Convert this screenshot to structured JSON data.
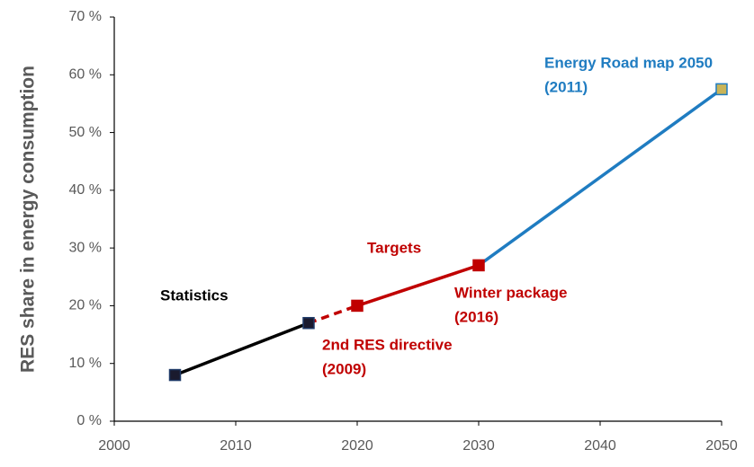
{
  "chart_data": {
    "type": "line",
    "y_label": "RES share in energy consumption",
    "xlim": [
      2000,
      2050
    ],
    "xticks": [
      2000,
      2010,
      2020,
      2030,
      2040,
      2050
    ],
    "ylim": [
      0,
      70
    ],
    "yticks": [
      {
        "value": 0,
        "label": "0 %"
      },
      {
        "value": 10,
        "label": "10 %"
      },
      {
        "value": 20,
        "label": "20 %"
      },
      {
        "value": 30,
        "label": "30 %"
      },
      {
        "value": 40,
        "label": "40 %"
      },
      {
        "value": 50,
        "label": "50 %"
      },
      {
        "value": 60,
        "label": "60 %"
      },
      {
        "value": 70,
        "label": "70 %"
      }
    ],
    "series": [
      {
        "name": "Statistics",
        "color": "#000000",
        "marker_color": "#1a1a2e",
        "x": [
          2005,
          2016
        ],
        "values": [
          8,
          17
        ],
        "markers": [
          true,
          true
        ],
        "dashed": false
      },
      {
        "color": "#c00000",
        "x": [
          2016,
          2020
        ],
        "values": [
          17,
          20
        ],
        "markers": [
          false,
          false
        ],
        "dashed": true
      },
      {
        "name": "Targets",
        "color": "#c00000",
        "marker_color": "#c00000",
        "x": [
          2020,
          2030
        ],
        "values": [
          20,
          27
        ],
        "markers": [
          true,
          true
        ],
        "dashed": false
      },
      {
        "color": "#1f7cc1",
        "marker_color": "#c9b458",
        "x": [
          2030,
          2050
        ],
        "values": [
          27,
          57.5
        ],
        "markers": [
          false,
          true
        ],
        "dashed": false
      }
    ],
    "annotations": [
      {
        "lines": [
          "2nd RES directive",
          "(2009)"
        ],
        "color": "#c00000"
      },
      {
        "lines": [
          "Winter package",
          "(2016)"
        ],
        "color": "#c00000"
      },
      {
        "lines": [
          "Energy Road map 2050",
          "(2011)"
        ],
        "color": "#1f7cc1"
      }
    ]
  }
}
